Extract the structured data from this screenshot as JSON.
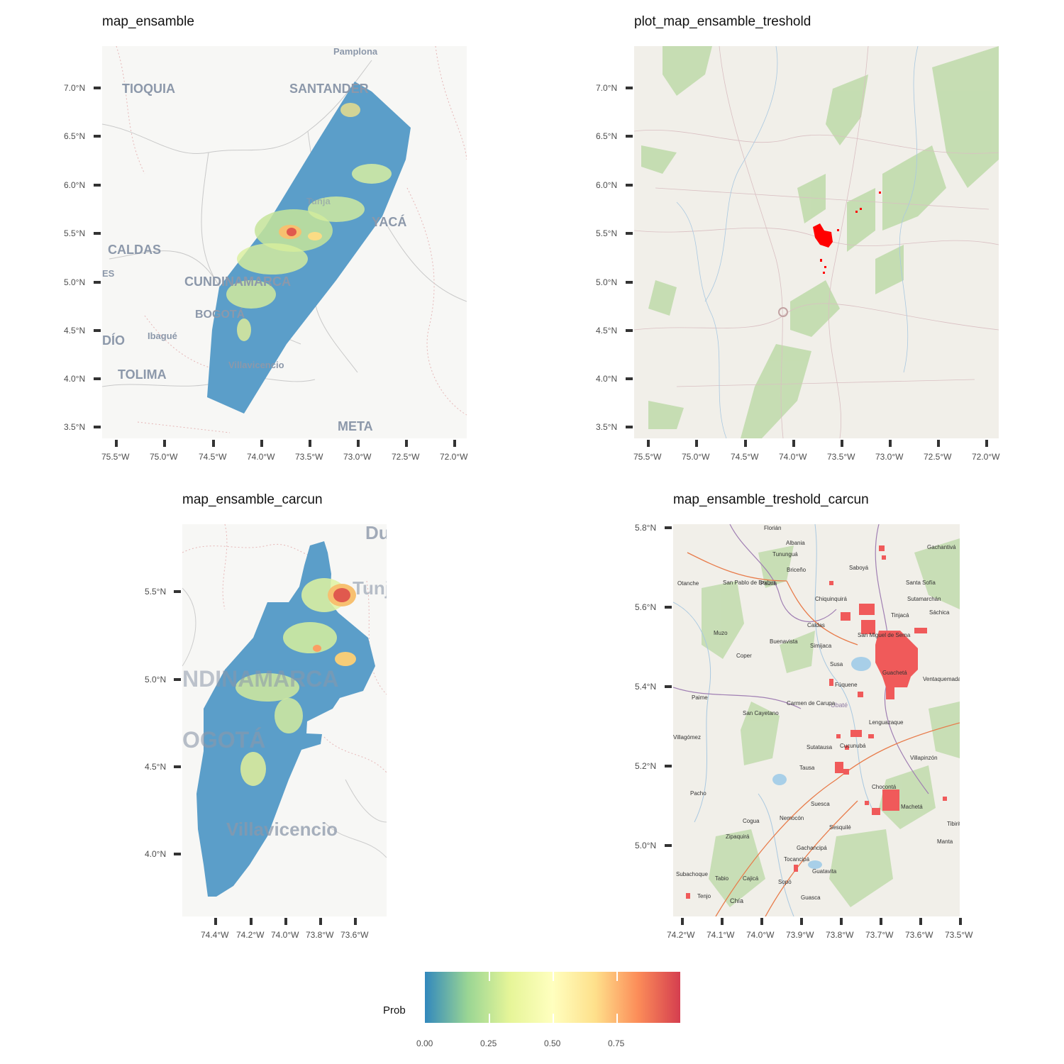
{
  "panels": {
    "p1": {
      "title": "map_ensamble",
      "y_ticks": [
        "7.0°N",
        "6.5°N",
        "6.0°N",
        "5.5°N",
        "5.0°N",
        "4.5°N",
        "4.0°N",
        "3.5°N"
      ],
      "x_ticks": [
        "75.5°W",
        "75.0°W",
        "74.5°W",
        "74.0°W",
        "73.5°W",
        "73.0°W",
        "72.5°W",
        "72.0°W"
      ],
      "places": [
        "Pamplona",
        "TIOQUIA",
        "SANTANDER",
        "CALDAS",
        "ES",
        "CUNDINAMARCA",
        "BOGOTÁ",
        "Ibagué",
        "DÍO",
        "TOLIMA",
        "Villavicencio",
        "META",
        "YACÁ",
        "Tunja"
      ]
    },
    "p2": {
      "title": "plot_map_ensamble_treshold",
      "y_ticks": [
        "7.0°N",
        "6.5°N",
        "6.0°N",
        "5.5°N",
        "5.0°N",
        "4.5°N",
        "4.0°N",
        "3.5°N"
      ],
      "x_ticks": [
        "75.5°W",
        "75.0°W",
        "74.5°W",
        "74.0°W",
        "73.5°W",
        "73.0°W",
        "72.5°W",
        "72.0°W"
      ]
    },
    "p3": {
      "title": "map_ensamble_carcun",
      "y_ticks": [
        "5.5°N",
        "5.0°N",
        "4.5°N",
        "4.0°N"
      ],
      "x_ticks": [
        "74.4°W",
        "74.2°W",
        "74.0°W",
        "73.8°W",
        "73.6°W"
      ],
      "places": [
        "Du",
        "Tunja",
        "NDINAMARCA",
        "OGOTÁ",
        "Villavicencio"
      ]
    },
    "p4": {
      "title": "map_ensamble_treshold_carcun",
      "y_ticks": [
        "5.8°N",
        "5.6°N",
        "5.4°N",
        "5.2°N",
        "5.0°N"
      ],
      "x_ticks": [
        "74.2°W",
        "74.1°W",
        "74.0°W",
        "73.9°W",
        "73.8°W",
        "73.7°W",
        "73.6°W",
        "73.5°W"
      ],
      "towns": [
        "Florián",
        "Albania",
        "Tununguá",
        "Gachantivá",
        "Santa Sofía",
        "Briceño",
        "Saboyá",
        "Otanche",
        "San Pablo de Borbur",
        "Pauna",
        "Chiquinquirá",
        "Sutamarchán",
        "Tinjacá",
        "Sáchica",
        "Caldas",
        "San Miguel de Sema",
        "Muzo",
        "Buenavista",
        "Simijaca",
        "Coper",
        "Susa",
        "Fúquene",
        "Guachetá",
        "Ventaquemada",
        "Paime",
        "Ubaté",
        "San Cayetano",
        "Carmen de Carupa",
        "Lenguazaque",
        "Sutatausa",
        "Cucunubá",
        "Villagómez",
        "Tausa",
        "Villapinzón",
        "Pacho",
        "Chocontá",
        "Suesca",
        "Machetá",
        "Nemocón",
        "Cogua",
        "Sesquilé",
        "Zipaquirá",
        "Gachancipá",
        "Tibirita",
        "Manta",
        "Subachoque",
        "Tocancipá",
        "Guatavita",
        "Tabio",
        "Cajicá",
        "Sopó",
        "Tenjo",
        "Chía",
        "Guasca"
      ]
    }
  },
  "legend": {
    "title": "Prob",
    "ticks": [
      "0.00",
      "0.25",
      "0.50",
      "0.75"
    ],
    "colors": [
      "#3288bd",
      "#99d594",
      "#e6f598",
      "#ffffbf",
      "#fee08b",
      "#fc8d59",
      "#d53e4f"
    ]
  },
  "colors": {
    "prob_low": "#5b9ec9",
    "threshold": "#ff0000",
    "threshold_light": "#f05a5a",
    "basemap_light": "#f7f7f5",
    "basemap_osm": "#f1efe9"
  }
}
